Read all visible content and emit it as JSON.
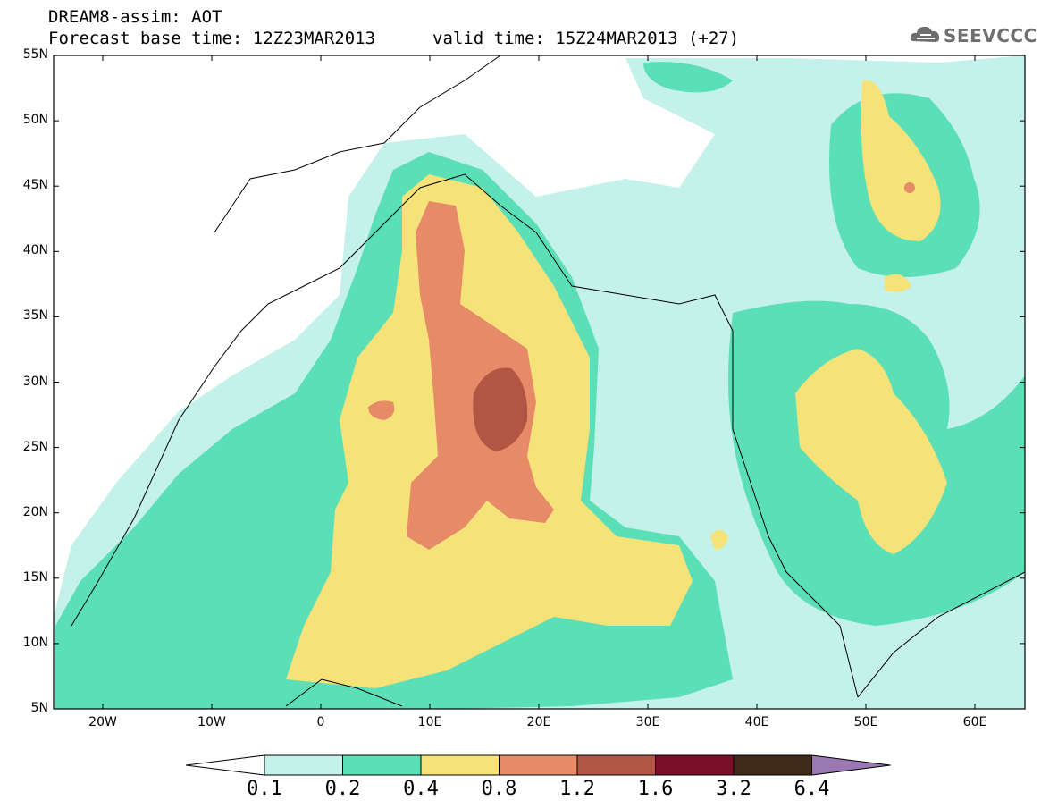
{
  "header": {
    "line1": "DREAM8-assim: AOT",
    "line2": "Forecast base time: 12Z23MAR2013",
    "valid": "valid time: 15Z24MAR2013 (+27)",
    "logo_text": "SEEVCCC"
  },
  "map": {
    "lat_labels": [
      "55N",
      "50N",
      "45N",
      "40N",
      "35N",
      "30N",
      "25N",
      "20N",
      "15N",
      "10N",
      "5N"
    ],
    "lon_labels": [
      "20W",
      "10W",
      "0",
      "10E",
      "20E",
      "30E",
      "40E",
      "50E",
      "60E"
    ]
  },
  "colors": {
    "c1": "#c4f1ea",
    "c2": "#5adfb7",
    "c3": "#f5e37a",
    "c4": "#e68a68",
    "c5": "#b15544",
    "c6": "#7a0f2a",
    "c7": "#3f2a17",
    "c8": "#9a79b3"
  },
  "colorbar": {
    "labels": [
      "0.1",
      "0.2",
      "0.4",
      "0.8",
      "1.2",
      "1.6",
      "3.2",
      "6.4"
    ]
  }
}
